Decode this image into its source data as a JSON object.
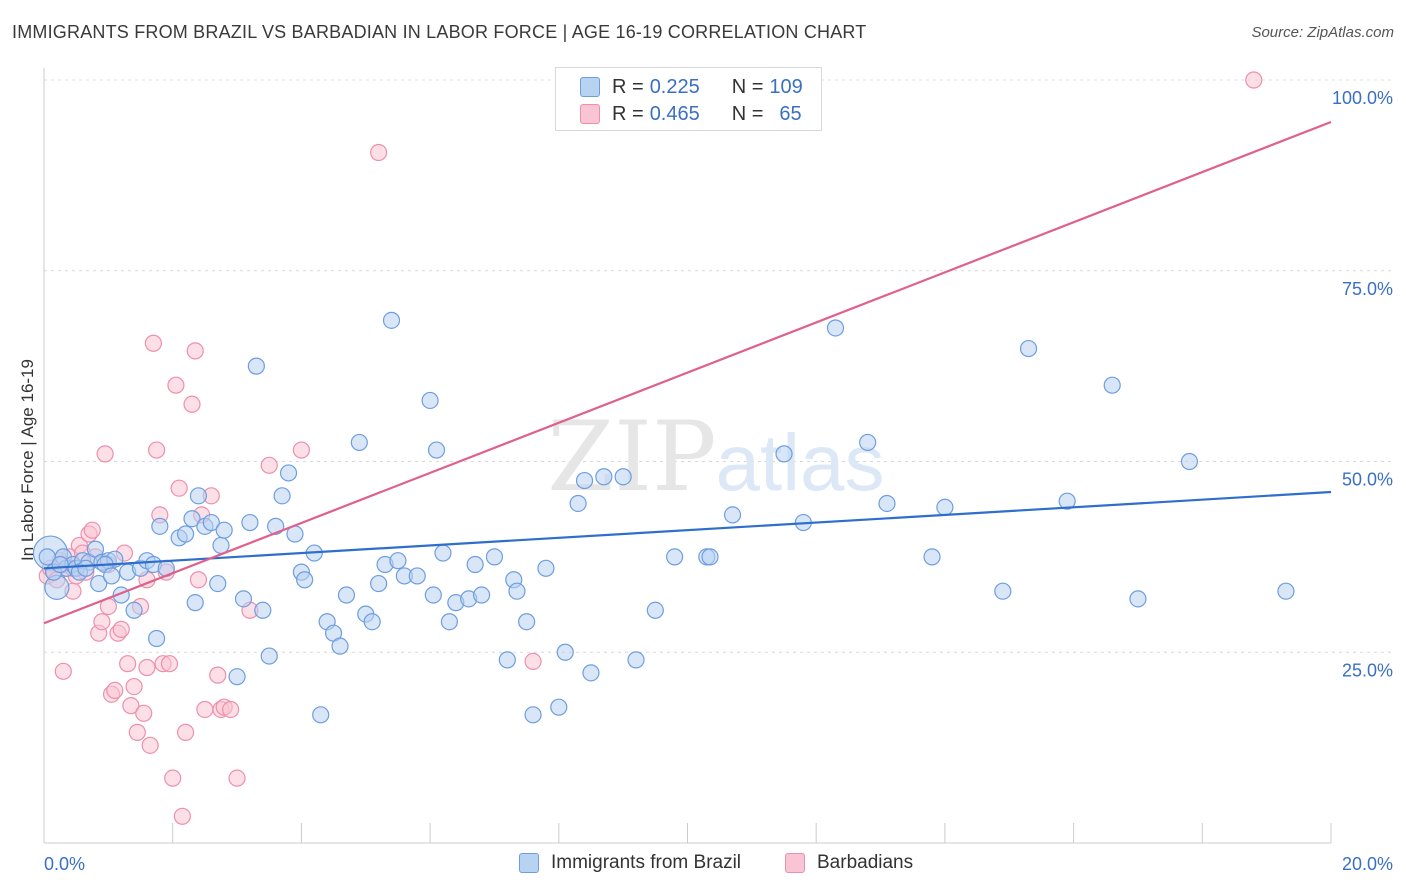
{
  "header": {
    "title": "IMMIGRANTS FROM BRAZIL VS BARBADIAN IN LABOR FORCE | AGE 16-19 CORRELATION CHART",
    "source": "Source: ZipAtlas.com"
  },
  "legend": {
    "brazil": {
      "r_label": "R =",
      "r_value": "0.225",
      "n_label": "N =",
      "n_value": "109"
    },
    "barbadian": {
      "r_label": "R =",
      "r_value": "0.465",
      "n_label": "N =",
      "n_value": "65"
    }
  },
  "colors": {
    "brazil_fill": "#b8d2f2",
    "brazil_stroke": "#6d9ee0",
    "brazil_line": "#2f6fcc",
    "barbadian_fill": "#f9c4d3",
    "barbadian_stroke": "#ee8fab",
    "barbadian_line": "#e0608a",
    "tick_label": "#3a6fc4"
  },
  "watermark": {
    "zip": "ZIP",
    "atlas": "atlas"
  },
  "chart_data": {
    "type": "scatter",
    "title": "IMMIGRANTS FROM BRAZIL VS BARBADIAN IN LABOR FORCE | AGE 16-19 CORRELATION CHART",
    "xlabel": "",
    "ylabel": "In Labor Force | Age 16-19",
    "xlim": [
      0,
      20
    ],
    "ylim": [
      0,
      103
    ],
    "x_tick_labels": [
      "0.0%",
      "20.0%"
    ],
    "y_ticks": [
      25,
      50,
      75,
      100
    ],
    "y_tick_labels": [
      "25.0%",
      "50.0%",
      "75.0%",
      "100.0%"
    ],
    "grid": true,
    "series": [
      {
        "name": "Immigrants from Brazil",
        "trend": {
          "x": [
            0,
            20
          ],
          "y": [
            36.0,
            46.0
          ]
        },
        "points": [
          [
            0.1,
            38.0
          ],
          [
            0.2,
            33.5
          ],
          [
            0.3,
            37.5
          ],
          [
            0.35,
            36.0
          ],
          [
            0.45,
            36.5
          ],
          [
            0.5,
            36.0
          ],
          [
            0.6,
            37.0
          ],
          [
            0.7,
            36.8
          ],
          [
            0.8,
            38.5
          ],
          [
            0.85,
            34.0
          ],
          [
            0.9,
            36.8
          ],
          [
            1.0,
            37.0
          ],
          [
            1.1,
            37.2
          ],
          [
            1.2,
            32.5
          ],
          [
            1.3,
            35.5
          ],
          [
            1.4,
            30.5
          ],
          [
            1.5,
            36.0
          ],
          [
            1.6,
            37.0
          ],
          [
            1.7,
            36.5
          ],
          [
            1.75,
            26.8
          ],
          [
            1.8,
            41.5
          ],
          [
            1.9,
            36.0
          ],
          [
            2.1,
            40.0
          ],
          [
            2.2,
            40.5
          ],
          [
            2.3,
            42.5
          ],
          [
            2.35,
            31.5
          ],
          [
            2.4,
            45.5
          ],
          [
            2.5,
            41.5
          ],
          [
            2.6,
            42.0
          ],
          [
            2.7,
            34.0
          ],
          [
            2.75,
            39.0
          ],
          [
            2.8,
            41.0
          ],
          [
            3.0,
            21.8
          ],
          [
            3.1,
            32.0
          ],
          [
            3.2,
            42.0
          ],
          [
            3.3,
            62.5
          ],
          [
            3.4,
            30.5
          ],
          [
            3.5,
            24.5
          ],
          [
            3.6,
            41.5
          ],
          [
            3.7,
            45.5
          ],
          [
            3.8,
            48.5
          ],
          [
            3.9,
            40.5
          ],
          [
            4.0,
            35.5
          ],
          [
            4.05,
            34.5
          ],
          [
            4.2,
            38.0
          ],
          [
            4.3,
            16.8
          ],
          [
            4.4,
            29.0
          ],
          [
            4.5,
            27.5
          ],
          [
            4.6,
            25.8
          ],
          [
            4.7,
            32.5
          ],
          [
            4.9,
            52.5
          ],
          [
            5.0,
            30.0
          ],
          [
            5.1,
            29.0
          ],
          [
            5.2,
            34.0
          ],
          [
            5.3,
            36.5
          ],
          [
            5.4,
            68.5
          ],
          [
            5.5,
            37.0
          ],
          [
            5.6,
            35.0
          ],
          [
            5.8,
            35.0
          ],
          [
            6.0,
            58.0
          ],
          [
            6.05,
            32.5
          ],
          [
            6.1,
            51.5
          ],
          [
            6.2,
            38.0
          ],
          [
            6.3,
            29.0
          ],
          [
            6.4,
            31.5
          ],
          [
            6.6,
            32.0
          ],
          [
            6.7,
            36.5
          ],
          [
            6.8,
            32.5
          ],
          [
            7.0,
            37.5
          ],
          [
            7.2,
            24.0
          ],
          [
            7.3,
            34.5
          ],
          [
            7.35,
            33.0
          ],
          [
            7.5,
            29.0
          ],
          [
            7.6,
            16.8
          ],
          [
            7.8,
            36.0
          ],
          [
            8.0,
            17.8
          ],
          [
            8.1,
            25.0
          ],
          [
            8.3,
            44.5
          ],
          [
            8.4,
            47.5
          ],
          [
            8.5,
            22.3
          ],
          [
            8.7,
            48.0
          ],
          [
            9.0,
            48.0
          ],
          [
            9.2,
            24.0
          ],
          [
            9.5,
            30.5
          ],
          [
            9.8,
            37.5
          ],
          [
            10.3,
            37.5
          ],
          [
            10.35,
            37.5
          ],
          [
            10.7,
            43.0
          ],
          [
            11.5,
            51.0
          ],
          [
            11.8,
            42.0
          ],
          [
            12.3,
            67.5
          ],
          [
            12.8,
            52.5
          ],
          [
            13.1,
            44.5
          ],
          [
            13.8,
            37.5
          ],
          [
            14.0,
            44.0
          ],
          [
            14.9,
            33.0
          ],
          [
            15.3,
            64.8
          ],
          [
            15.9,
            44.8
          ],
          [
            16.6,
            60.0
          ],
          [
            17.0,
            32.0
          ],
          [
            17.8,
            50.0
          ],
          [
            19.3,
            33.0
          ],
          [
            0.05,
            37.5
          ],
          [
            0.15,
            35.5
          ],
          [
            0.25,
            36.5
          ],
          [
            0.55,
            35.5
          ],
          [
            0.65,
            36.0
          ],
          [
            0.95,
            36.5
          ],
          [
            1.05,
            35.0
          ]
        ],
        "sizes_note": "a few large points near x=0"
      },
      {
        "name": "Barbadians",
        "trend": {
          "x": [
            0,
            20
          ],
          "y": [
            28.8,
            94.5
          ]
        },
        "points": [
          [
            0.05,
            35.0
          ],
          [
            0.1,
            36.0
          ],
          [
            0.15,
            35.5
          ],
          [
            0.2,
            34.5
          ],
          [
            0.25,
            37.0
          ],
          [
            0.3,
            22.5
          ],
          [
            0.35,
            36.0
          ],
          [
            0.4,
            37.5
          ],
          [
            0.45,
            33.0
          ],
          [
            0.5,
            35.0
          ],
          [
            0.55,
            39.0
          ],
          [
            0.6,
            38.0
          ],
          [
            0.7,
            40.5
          ],
          [
            0.75,
            41.0
          ],
          [
            0.8,
            37.5
          ],
          [
            0.85,
            27.5
          ],
          [
            0.9,
            29.0
          ],
          [
            0.95,
            51.0
          ],
          [
            1.0,
            31.0
          ],
          [
            1.05,
            19.5
          ],
          [
            1.1,
            20.0
          ],
          [
            1.15,
            27.5
          ],
          [
            1.2,
            28.0
          ],
          [
            1.25,
            38.0
          ],
          [
            1.3,
            23.5
          ],
          [
            1.35,
            18.0
          ],
          [
            1.4,
            20.5
          ],
          [
            1.45,
            14.5
          ],
          [
            1.5,
            31.0
          ],
          [
            1.55,
            17.0
          ],
          [
            1.6,
            23.0
          ],
          [
            1.65,
            12.8
          ],
          [
            1.7,
            65.5
          ],
          [
            1.75,
            51.5
          ],
          [
            1.8,
            43.0
          ],
          [
            1.85,
            23.5
          ],
          [
            1.9,
            35.5
          ],
          [
            1.95,
            23.5
          ],
          [
            2.0,
            8.5
          ],
          [
            2.05,
            60.0
          ],
          [
            2.1,
            46.5
          ],
          [
            2.15,
            3.5
          ],
          [
            2.2,
            14.5
          ],
          [
            2.3,
            57.5
          ],
          [
            2.35,
            64.5
          ],
          [
            2.4,
            34.5
          ],
          [
            2.45,
            43.0
          ],
          [
            2.5,
            17.5
          ],
          [
            2.6,
            45.5
          ],
          [
            2.7,
            22.0
          ],
          [
            2.75,
            17.5
          ],
          [
            2.8,
            17.8
          ],
          [
            2.9,
            17.5
          ],
          [
            3.0,
            8.5
          ],
          [
            3.2,
            30.5
          ],
          [
            3.5,
            49.5
          ],
          [
            4.0,
            51.5
          ],
          [
            5.2,
            90.5
          ],
          [
            7.6,
            23.8
          ],
          [
            18.8,
            100.0
          ],
          [
            0.65,
            35.5
          ],
          [
            1.0,
            36.5
          ],
          [
            0.45,
            36.0
          ],
          [
            0.3,
            36.5
          ],
          [
            1.6,
            34.5
          ]
        ]
      }
    ]
  },
  "bottom_legend": {
    "brazil": "Immigrants from Brazil",
    "barbadian": "Barbadians"
  }
}
